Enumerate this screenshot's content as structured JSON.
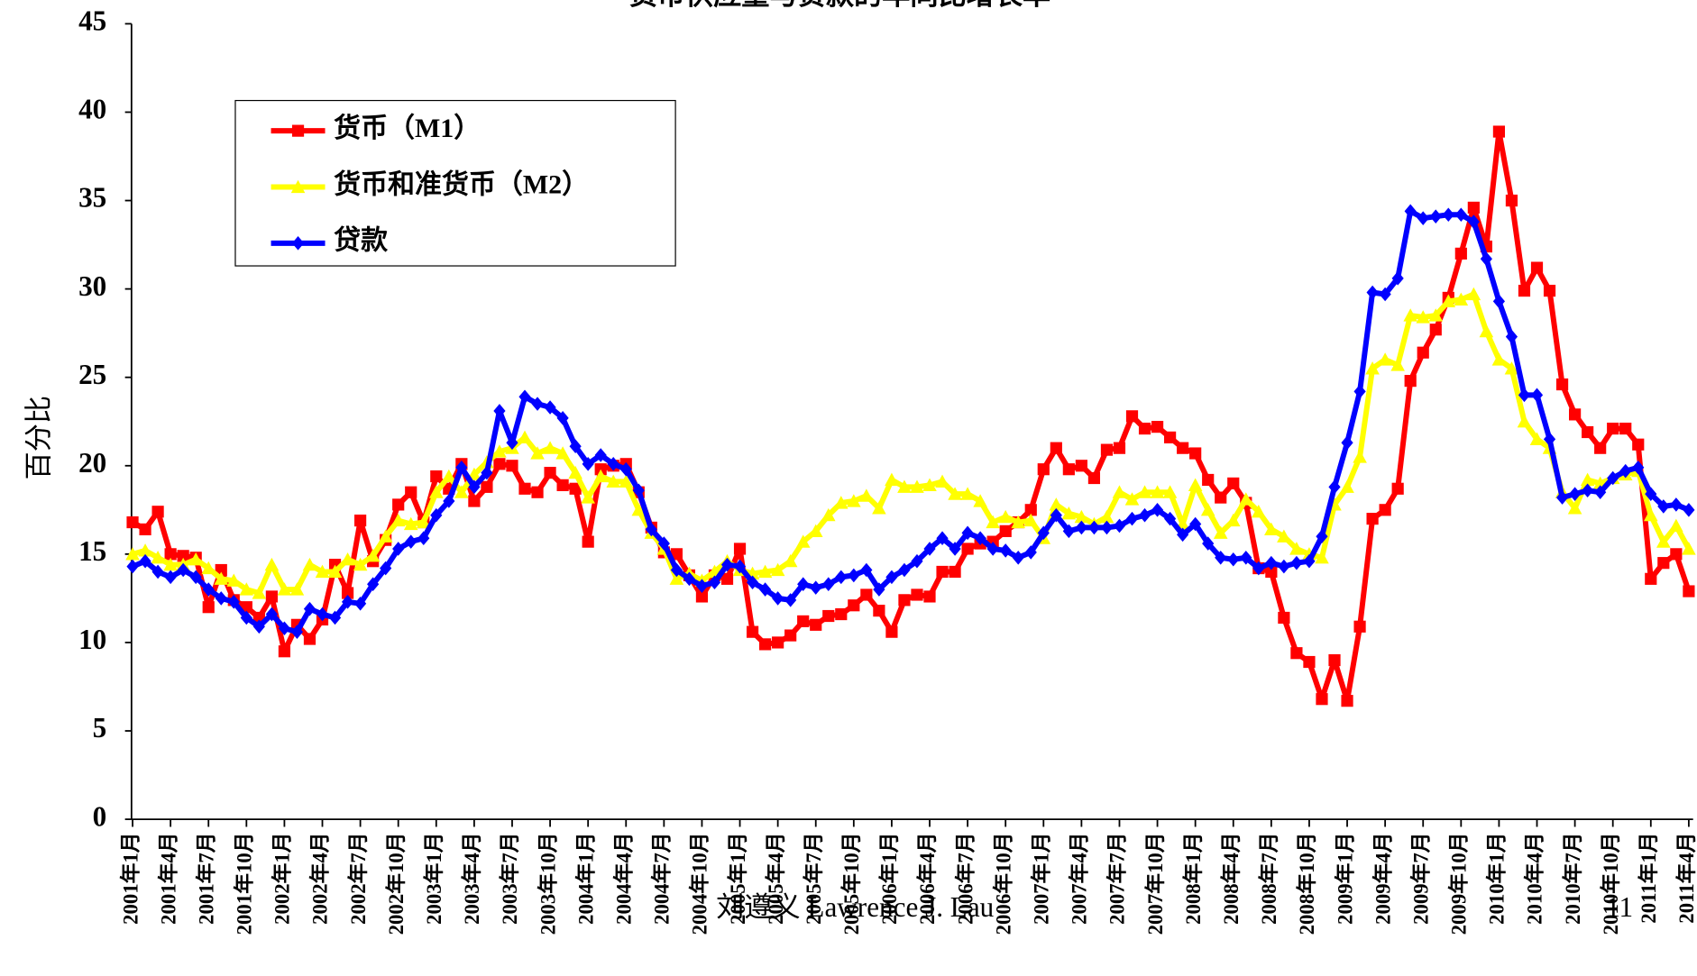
{
  "chart_data": {
    "type": "line",
    "title": "货币供应量与贷款的年同比增长率",
    "y_label": "百分比",
    "annotations": [
      "刘遵义 Lawrence J. Lau",
      "11"
    ],
    "categories": [
      "2001年1月",
      null,
      null,
      "2001年4月",
      null,
      null,
      "2001年7月",
      null,
      null,
      "2001年10月",
      null,
      null,
      "2002年1月",
      null,
      null,
      "2002年4月",
      null,
      null,
      "2002年7月",
      null,
      null,
      "2002年10月",
      null,
      null,
      "2003年1月",
      null,
      null,
      "2003年4月",
      null,
      null,
      "2003年7月",
      null,
      null,
      "2003年10月",
      null,
      null,
      "2004年1月",
      null,
      null,
      "2004年4月",
      null,
      null,
      "2004年7月",
      null,
      null,
      "2004年10月",
      null,
      null,
      "2005年1月",
      null,
      null,
      "2005年4月",
      null,
      null,
      "2005年7月",
      null,
      null,
      "2005年10月",
      null,
      null,
      "2006年1月",
      null,
      null,
      "2006年4月",
      null,
      null,
      "2006年7月",
      null,
      null,
      "2006年10月",
      null,
      null,
      "2007年1月",
      null,
      null,
      "2007年4月",
      null,
      null,
      "2007年7月",
      null,
      null,
      "2007年10月",
      null,
      null,
      "2008年1月",
      null,
      null,
      "2008年4月",
      null,
      null,
      "2008年7月",
      null,
      null,
      "2008年10月",
      null,
      null,
      "2009年1月",
      null,
      null,
      "2009年4月",
      null,
      null,
      "2009年7月",
      null,
      null,
      "2009年10月",
      null,
      null,
      "2010年1月",
      null,
      null,
      "2010年4月",
      null,
      null,
      "2010年7月",
      null,
      null,
      "2010年10月",
      null,
      null,
      "2011年1月",
      null,
      null,
      "2011年4月"
    ],
    "series": [
      {
        "name": "货币（M1）",
        "color": "#ff0000",
        "marker": "square",
        "values": [
          16.8,
          16.4,
          17.4,
          15.0,
          14.9,
          14.8,
          12.0,
          14.1,
          12.4,
          12.0,
          11.4,
          12.6,
          9.5,
          11.0,
          10.2,
          11.3,
          14.4,
          12.8,
          16.9,
          14.6,
          15.8,
          17.8,
          18.5,
          16.8,
          19.4,
          18.7,
          20.1,
          18.0,
          18.8,
          20.1,
          20.0,
          18.7,
          18.5,
          19.6,
          18.9,
          18.7,
          15.7,
          19.8,
          20.0,
          20.1,
          18.5,
          16.5,
          15.1,
          15.0,
          13.8,
          12.6,
          13.8,
          13.6,
          15.3,
          10.6,
          9.9,
          10.0,
          10.4,
          11.2,
          11.0,
          11.5,
          11.6,
          12.1,
          12.7,
          11.8,
          10.6,
          12.4,
          12.7,
          12.6,
          14.0,
          14.0,
          15.3,
          15.6,
          15.7,
          16.3,
          16.8,
          17.5,
          19.8,
          21.0,
          19.8,
          20.0,
          19.3,
          20.9,
          21.0,
          22.8,
          22.1,
          22.2,
          21.6,
          21.0,
          20.7,
          19.2,
          18.2,
          19.0,
          17.9,
          14.2,
          14.0,
          11.4,
          9.4,
          8.9,
          6.8,
          9.0,
          6.7,
          10.9,
          17.0,
          17.5,
          18.7,
          24.8,
          26.4,
          27.7,
          29.5,
          32.0,
          34.6,
          32.4,
          38.9,
          35.0,
          29.9,
          31.2,
          29.9,
          24.6,
          22.9,
          21.9,
          21.0,
          22.1,
          22.1,
          21.2,
          13.6,
          14.5,
          15.0,
          12.9
        ]
      },
      {
        "name": "货币和准货币（M2）",
        "color": "#ffff00",
        "marker": "triangle",
        "values": [
          15.0,
          15.2,
          14.8,
          14.4,
          14.4,
          14.7,
          14.2,
          13.6,
          13.5,
          13.0,
          12.8,
          14.4,
          13.0,
          13.0,
          14.4,
          14.0,
          14.0,
          14.7,
          14.4,
          14.9,
          16.0,
          16.9,
          16.7,
          16.8,
          18.5,
          19.4,
          18.5,
          19.5,
          20.2,
          20.8,
          21.0,
          21.6,
          20.7,
          21.0,
          20.7,
          19.6,
          18.2,
          19.4,
          19.1,
          19.1,
          17.5,
          16.2,
          15.3,
          13.6,
          13.9,
          13.5,
          14.0,
          14.6,
          14.1,
          13.9,
          14.0,
          14.1,
          14.6,
          15.7,
          16.3,
          17.2,
          17.9,
          18.0,
          18.3,
          17.6,
          19.2,
          18.8,
          18.8,
          18.9,
          19.1,
          18.4,
          18.4,
          18.0,
          16.8,
          17.1,
          16.8,
          16.9,
          15.9,
          17.8,
          17.3,
          17.1,
          16.7,
          17.1,
          18.5,
          18.1,
          18.5,
          18.5,
          18.5,
          16.7,
          18.9,
          17.5,
          16.2,
          16.9,
          18.1,
          17.4,
          16.4,
          16.0,
          15.3,
          15.0,
          14.8,
          17.8,
          18.8,
          20.5,
          25.5,
          26.0,
          25.7,
          28.5,
          28.4,
          28.5,
          29.3,
          29.4,
          29.7,
          27.6,
          26.0,
          25.5,
          22.5,
          21.5,
          21.0,
          18.5,
          17.6,
          19.2,
          19.0,
          19.3,
          19.5,
          19.7,
          17.2,
          15.7,
          16.6,
          15.3
        ]
      },
      {
        "name": "贷款",
        "color": "#0000ff",
        "marker": "diamond",
        "values": [
          14.3,
          14.6,
          14.0,
          13.7,
          14.1,
          13.7,
          13.0,
          12.5,
          12.3,
          11.4,
          10.9,
          11.6,
          10.8,
          10.6,
          11.9,
          11.6,
          11.4,
          12.3,
          12.2,
          13.3,
          14.2,
          15.3,
          15.7,
          15.9,
          17.2,
          18.0,
          19.9,
          18.8,
          19.6,
          23.1,
          21.3,
          23.9,
          23.5,
          23.3,
          22.7,
          21.1,
          20.1,
          20.6,
          20.1,
          19.8,
          18.6,
          16.4,
          15.6,
          14.1,
          13.6,
          13.2,
          13.4,
          14.4,
          14.3,
          13.4,
          13.0,
          12.5,
          12.4,
          13.3,
          13.1,
          13.3,
          13.7,
          13.8,
          14.1,
          13.0,
          13.7,
          14.1,
          14.6,
          15.3,
          15.9,
          15.3,
          16.2,
          15.9,
          15.3,
          15.2,
          14.8,
          15.1,
          16.2,
          17.2,
          16.3,
          16.5,
          16.5,
          16.5,
          16.6,
          17.0,
          17.2,
          17.5,
          17.0,
          16.1,
          16.7,
          15.6,
          14.8,
          14.7,
          14.8,
          14.2,
          14.5,
          14.3,
          14.5,
          14.6,
          16.0,
          18.8,
          21.3,
          24.2,
          29.8,
          29.7,
          30.6,
          34.4,
          34.0,
          34.1,
          34.2,
          34.2,
          33.8,
          31.7,
          29.3,
          27.3,
          24.0,
          24.0,
          21.5,
          18.2,
          18.4,
          18.6,
          18.5,
          19.3,
          19.7,
          19.9,
          18.4,
          17.7,
          17.8,
          17.5
        ]
      }
    ],
    "ylim": [
      0,
      45
    ],
    "yticks": [
      0,
      5,
      10,
      15,
      20,
      25,
      30,
      35,
      40,
      45
    ],
    "grid": false,
    "legend": "upper left"
  }
}
